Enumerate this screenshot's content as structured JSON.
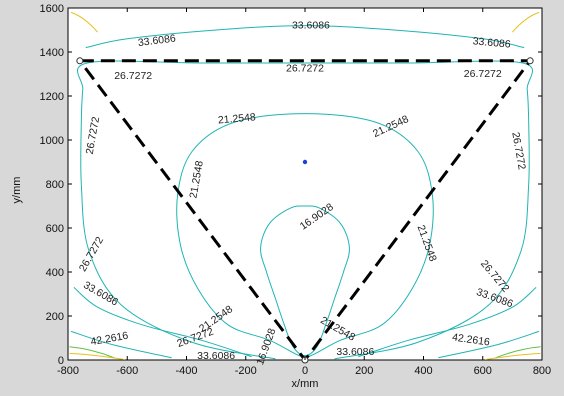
{
  "chart_data": {
    "type": "contour",
    "xlabel": "x/mm",
    "ylabel": "y/mm",
    "xlim": [
      -800,
      800
    ],
    "ylim": [
      0,
      1600
    ],
    "x_ticks": [
      "-800",
      "-600",
      "-400",
      "-200",
      "0",
      "200",
      "400",
      "600",
      "800"
    ],
    "y_ticks": [
      "0",
      "200",
      "400",
      "600",
      "800",
      "1000",
      "1200",
      "1400",
      "1600"
    ],
    "colors": {
      "contour": "#20b4b4",
      "triangle": "#000000",
      "center_point": "#1f3fd8",
      "corner_warm": "#e8c020",
      "corner_green": "#60c040"
    },
    "triangle": {
      "vertices": [
        [
          -760,
          1360
        ],
        [
          760,
          1360
        ],
        [
          0,
          0
        ]
      ],
      "style": "dashed"
    },
    "center_point": {
      "x": 0,
      "y": 900
    },
    "contour_levels": [
      {
        "value": "16.9028",
        "points": [
          [
            -40,
            60
          ],
          [
            -70,
            160
          ],
          [
            -100,
            280
          ],
          [
            -130,
            400
          ],
          [
            -150,
            510
          ],
          [
            -120,
            620
          ],
          [
            -50,
            690
          ],
          [
            0,
            700
          ],
          [
            50,
            690
          ],
          [
            120,
            620
          ],
          [
            150,
            510
          ],
          [
            130,
            400
          ],
          [
            100,
            280
          ],
          [
            70,
            160
          ],
          [
            40,
            60
          ],
          [
            0,
            20
          ]
        ],
        "closed": true,
        "labels": [
          {
            "x": 40,
            "y": 650,
            "rot": 35
          },
          {
            "x": -130,
            "y": 60,
            "rot": 70
          }
        ]
      },
      {
        "value": "21.2548",
        "points": [
          [
            -20,
            20
          ],
          [
            -120,
            90
          ],
          [
            -260,
            160
          ],
          [
            -360,
            320
          ],
          [
            -420,
            520
          ],
          [
            -430,
            750
          ],
          [
            -380,
            950
          ],
          [
            -240,
            1080
          ],
          [
            0,
            1120
          ],
          [
            240,
            1080
          ],
          [
            380,
            950
          ],
          [
            430,
            750
          ],
          [
            420,
            520
          ],
          [
            360,
            320
          ],
          [
            260,
            160
          ],
          [
            120,
            90
          ],
          [
            20,
            20
          ]
        ],
        "closed": true,
        "labels": [
          {
            "x": -230,
            "y": 1095,
            "rot": 5
          },
          {
            "x": 290,
            "y": 1060,
            "rot": 25
          },
          {
            "x": -365,
            "y": 820,
            "rot": 80
          },
          {
            "x": 410,
            "y": 530,
            "rot": -70
          },
          {
            "x": -300,
            "y": 185,
            "rot": 35
          },
          {
            "x": 110,
            "y": 140,
            "rot": -30
          }
        ]
      },
      {
        "value": "26.7272",
        "points": [
          [
            -100,
            5
          ],
          [
            -380,
            80
          ],
          [
            -620,
            250
          ],
          [
            -730,
            500
          ],
          [
            -755,
            800
          ],
          [
            -755,
            1080
          ],
          [
            -750,
            1230
          ],
          [
            -735,
            1350
          ],
          [
            -350,
            1350
          ],
          [
            0,
            1350
          ],
          [
            350,
            1350
          ],
          [
            735,
            1350
          ],
          [
            750,
            1230
          ],
          [
            755,
            1080
          ],
          [
            755,
            800
          ],
          [
            730,
            500
          ],
          [
            620,
            250
          ],
          [
            380,
            80
          ],
          [
            100,
            5
          ]
        ],
        "closed": false,
        "labels": [
          {
            "x": -580,
            "y": 1290,
            "rot": 0
          },
          {
            "x": 0,
            "y": 1325,
            "rot": 0
          },
          {
            "x": 600,
            "y": 1300,
            "rot": 0
          },
          {
            "x": -715,
            "y": 1020,
            "rot": 80
          },
          {
            "x": 720,
            "y": 950,
            "rot": -80
          },
          {
            "x": -720,
            "y": 480,
            "rot": 60
          },
          {
            "x": 640,
            "y": 380,
            "rot": -50
          },
          {
            "x": -370,
            "y": 100,
            "rot": 20
          }
        ]
      },
      {
        "value": "33.6086",
        "points": [
          [
            -740,
            1420
          ],
          [
            -600,
            1460
          ],
          [
            -300,
            1500
          ],
          [
            0,
            1520
          ],
          [
            300,
            1500
          ],
          [
            600,
            1460
          ],
          [
            740,
            1420
          ]
        ],
        "closed": false,
        "labels": [
          {
            "x": -500,
            "y": 1450,
            "rot": 7
          },
          {
            "x": 20,
            "y": 1520,
            "rot": 0
          },
          {
            "x": 630,
            "y": 1440,
            "rot": -5
          }
        ]
      },
      {
        "value": "33.6086",
        "points": [
          [
            -780,
            330
          ],
          [
            -700,
            240
          ],
          [
            -550,
            160
          ],
          [
            -350,
            90
          ],
          [
            -180,
            15
          ]
        ],
        "closed": false,
        "labels": [
          {
            "x": -690,
            "y": 300,
            "rot": -30
          },
          {
            "x": -300,
            "y": 18,
            "rot": 0
          }
        ]
      },
      {
        "value": "33.6086",
        "points": [
          [
            180,
            15
          ],
          [
            350,
            90
          ],
          [
            550,
            160
          ],
          [
            700,
            240
          ],
          [
            780,
            330
          ]
        ],
        "closed": false,
        "labels": [
          {
            "x": 640,
            "y": 280,
            "rot": -20
          },
          {
            "x": 170,
            "y": 35,
            "rot": 0
          }
        ]
      },
      {
        "value": "42.2616",
        "points": [
          [
            -790,
            130
          ],
          [
            -650,
            70
          ],
          [
            -450,
            10
          ]
        ],
        "closed": false,
        "labels": [
          {
            "x": -660,
            "y": 95,
            "rot": 10
          }
        ]
      },
      {
        "value": "42.2616",
        "points": [
          [
            450,
            10
          ],
          [
            650,
            70
          ],
          [
            790,
            130
          ]
        ],
        "closed": false,
        "labels": [
          {
            "x": 560,
            "y": 90,
            "rot": -8
          }
        ]
      }
    ]
  }
}
